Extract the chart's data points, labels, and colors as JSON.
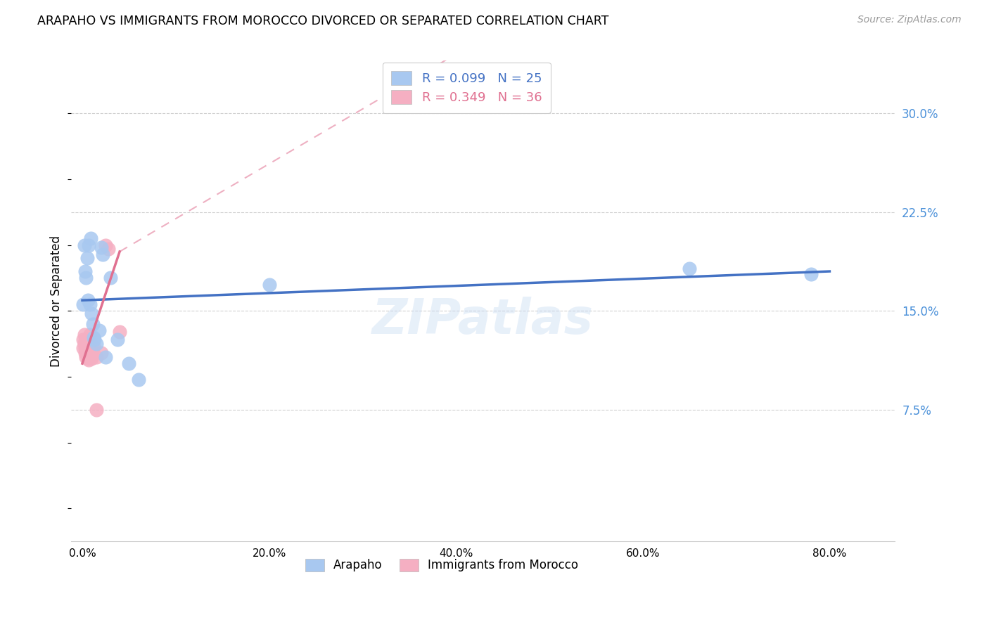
{
  "title": "ARAPAHO VS IMMIGRANTS FROM MOROCCO DIVORCED OR SEPARATED CORRELATION CHART",
  "source": "Source: ZipAtlas.com",
  "ylabel": "Divorced or Separated",
  "xlabel_ticks": [
    "0.0%",
    "20.0%",
    "40.0%",
    "60.0%",
    "80.0%"
  ],
  "xlabel_vals": [
    0.0,
    0.2,
    0.4,
    0.6,
    0.8
  ],
  "ylabel_ticks": [
    "7.5%",
    "15.0%",
    "22.5%",
    "30.0%"
  ],
  "ylabel_vals": [
    0.075,
    0.15,
    0.225,
    0.3
  ],
  "ylim": [
    -0.025,
    0.34
  ],
  "xlim": [
    -0.012,
    0.87
  ],
  "arapaho_R": 0.099,
  "arapaho_N": 25,
  "morocco_R": 0.349,
  "morocco_N": 36,
  "arapaho_color": "#a8c8f0",
  "morocco_color": "#f5afc2",
  "arapaho_line_color": "#4472c4",
  "morocco_line_color": "#e07090",
  "legend_R_color_arapaho": "#4472c4",
  "legend_N_color_arapaho": "#4472c4",
  "legend_R_color_morocco": "#e07090",
  "legend_N_color_morocco": "#e07090",
  "watermark": "ZIPatlas",
  "arapaho_x": [
    0.001,
    0.002,
    0.003,
    0.004,
    0.005,
    0.006,
    0.007,
    0.008,
    0.009,
    0.01,
    0.011,
    0.012,
    0.013,
    0.015,
    0.018,
    0.02,
    0.022,
    0.025,
    0.03,
    0.038,
    0.05,
    0.06,
    0.2,
    0.65,
    0.78
  ],
  "arapaho_y": [
    0.155,
    0.2,
    0.18,
    0.175,
    0.19,
    0.158,
    0.2,
    0.155,
    0.205,
    0.148,
    0.14,
    0.13,
    0.128,
    0.125,
    0.135,
    0.198,
    0.193,
    0.115,
    0.175,
    0.128,
    0.11,
    0.098,
    0.17,
    0.182,
    0.178
  ],
  "morocco_x": [
    0.001,
    0.001,
    0.002,
    0.002,
    0.003,
    0.003,
    0.003,
    0.004,
    0.004,
    0.004,
    0.005,
    0.005,
    0.005,
    0.006,
    0.006,
    0.006,
    0.006,
    0.007,
    0.007,
    0.007,
    0.007,
    0.007,
    0.008,
    0.008,
    0.008,
    0.009,
    0.009,
    0.01,
    0.01,
    0.012,
    0.015,
    0.02,
    0.025,
    0.028,
    0.04,
    0.015
  ],
  "morocco_y": [
    0.128,
    0.122,
    0.125,
    0.132,
    0.118,
    0.122,
    0.127,
    0.115,
    0.12,
    0.125,
    0.117,
    0.122,
    0.128,
    0.114,
    0.118,
    0.122,
    0.127,
    0.113,
    0.117,
    0.12,
    0.124,
    0.128,
    0.122,
    0.127,
    0.132,
    0.115,
    0.119,
    0.114,
    0.118,
    0.123,
    0.115,
    0.118,
    0.2,
    0.197,
    0.134,
    0.075
  ],
  "morocco_line_x0": 0.0,
  "morocco_line_y0": 0.11,
  "morocco_line_x1": 0.04,
  "morocco_line_y1": 0.195,
  "morocco_line_dash_x1": 0.4,
  "morocco_line_dash_y1": 0.345,
  "arapaho_line_x0": 0.0,
  "arapaho_line_y0": 0.158,
  "arapaho_line_x1": 0.8,
  "arapaho_line_y1": 0.18
}
